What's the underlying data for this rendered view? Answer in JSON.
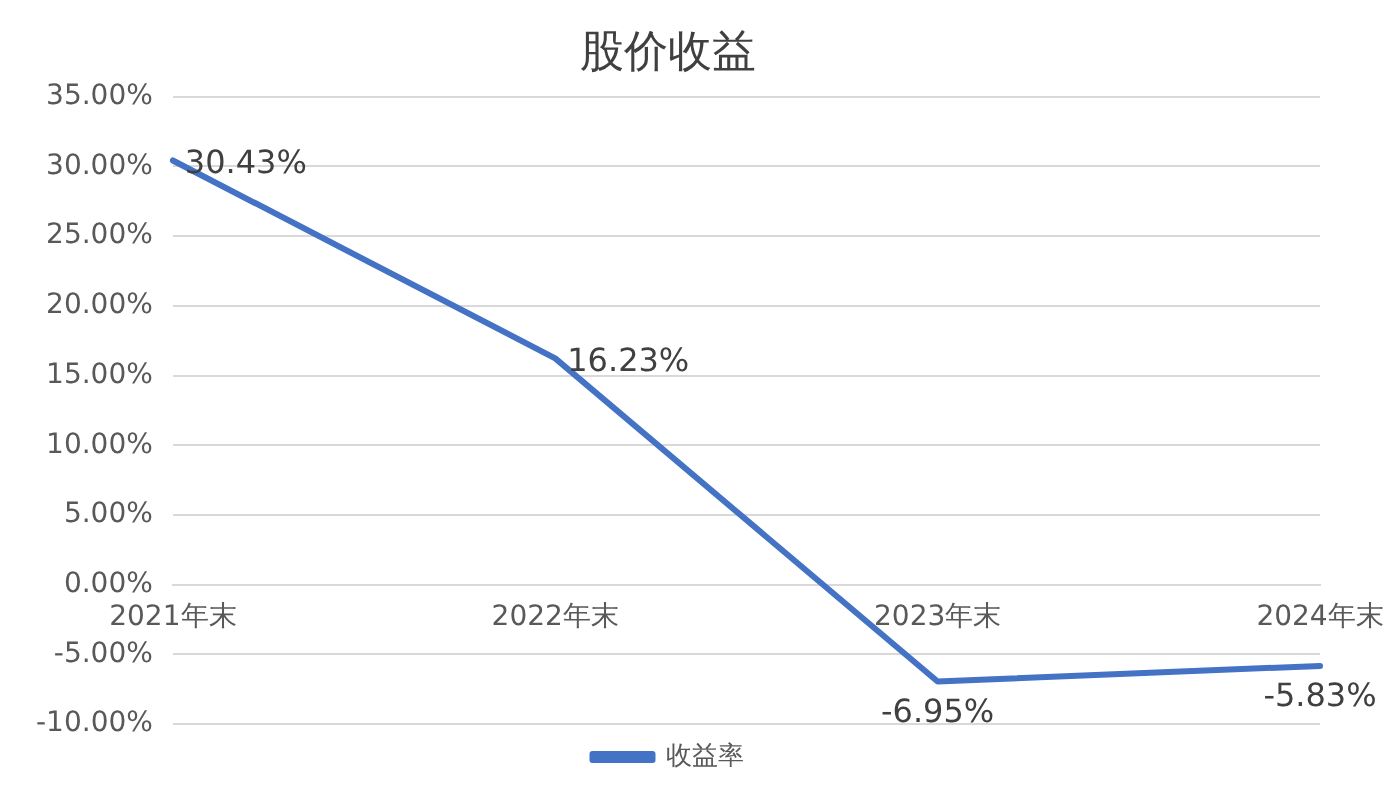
{
  "chart_data": {
    "type": "line",
    "title": "股价收益",
    "categories": [
      "2021年末",
      "2022年末",
      "2023年末",
      "2024年末"
    ],
    "series": [
      {
        "name": "收益率",
        "color": "#4472c4",
        "values": [
          30.43,
          16.23,
          -6.95,
          -5.83
        ],
        "value_labels": [
          "30.43%",
          "16.23%",
          "-6.95%",
          "-5.83%"
        ]
      }
    ],
    "ylim": [
      -10,
      35
    ],
    "yticks": [
      {
        "value": -10,
        "label": "-10.00%"
      },
      {
        "value": -5,
        "label": "-5.00%"
      },
      {
        "value": 0,
        "label": "0.00%"
      },
      {
        "value": 5,
        "label": "5.00%"
      },
      {
        "value": 10,
        "label": "10.00%"
      },
      {
        "value": 15,
        "label": "15.00%"
      },
      {
        "value": 20,
        "label": "20.00%"
      },
      {
        "value": 25,
        "label": "25.00%"
      },
      {
        "value": 30,
        "label": "30.00%"
      },
      {
        "value": 35,
        "label": "35.00%"
      }
    ],
    "grid": "y",
    "legend": "bottom",
    "marker": "none",
    "line_style": "solid"
  }
}
